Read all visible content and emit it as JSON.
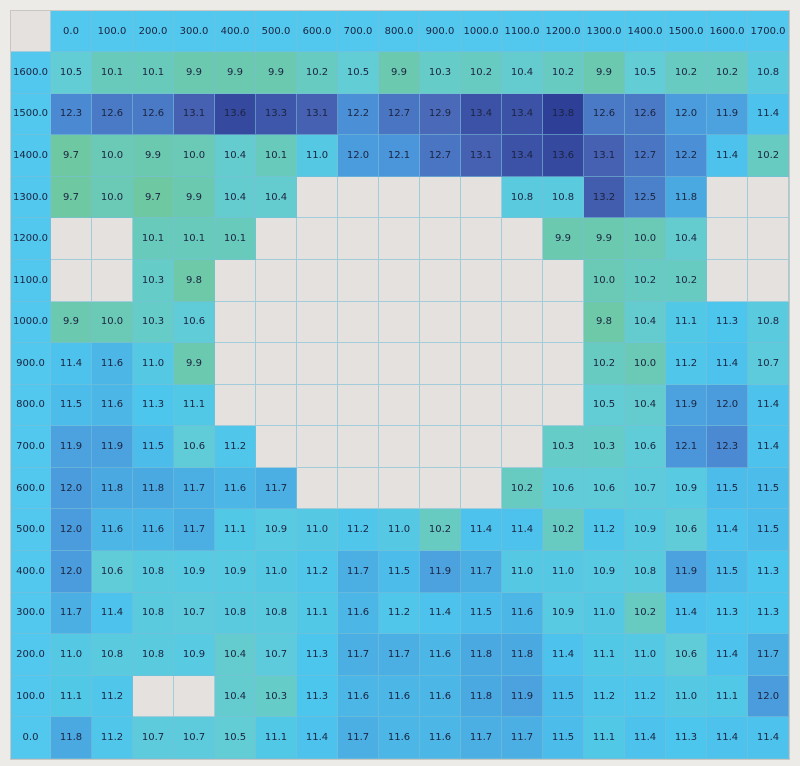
{
  "table": {
    "palette": [
      "#6ec8a2",
      "#62cdd6",
      "#4cc6ee",
      "#4b92d8",
      "#4a66b6",
      "#2e3f98"
    ],
    "empty_color": "#e4e1de",
    "header_color": "#52c8ee",
    "columns": [
      "0.0",
      "100.0",
      "200.0",
      "300.0",
      "400.0",
      "500.0",
      "600.0",
      "700.0",
      "800.0",
      "900.0",
      "1000.0",
      "1100.0",
      "1200.0",
      "1300.0",
      "1400.0",
      "1500.0",
      "1600.0",
      "1700.0"
    ],
    "rows": [
      {
        "label": "1600.0",
        "cells": [
          "10.5",
          "10.1",
          "10.1",
          "9.9",
          "9.9",
          "9.9",
          "10.2",
          "10.5",
          "9.9",
          "10.3",
          "10.2",
          "10.4",
          "10.2",
          "9.9",
          "10.5",
          "10.2",
          "10.2",
          "10.8"
        ]
      },
      {
        "label": "1500.0",
        "cells": [
          "12.3",
          "12.6",
          "12.6",
          "13.1",
          "13.6",
          "13.3",
          "13.1",
          "12.2",
          "12.7",
          "12.9",
          "13.4",
          "13.4",
          "13.8",
          "12.6",
          "12.6",
          "12.0",
          "11.9",
          "11.4"
        ]
      },
      {
        "label": "1400.0",
        "cells": [
          "9.7",
          "10.0",
          "9.9",
          "10.0",
          "10.4",
          "10.1",
          "11.0",
          "12.0",
          "12.1",
          "12.7",
          "13.1",
          "13.4",
          "13.6",
          "13.1",
          "12.7",
          "12.2",
          "11.4",
          "10.2"
        ]
      },
      {
        "label": "1300.0",
        "cells": [
          "9.7",
          "10.0",
          "9.7",
          "9.9",
          "10.4",
          "10.4",
          null,
          null,
          null,
          null,
          null,
          "10.8",
          "10.8",
          "13.2",
          "12.5",
          "11.8",
          null,
          null
        ]
      },
      {
        "label": "1200.0",
        "cells": [
          null,
          null,
          "10.1",
          "10.1",
          "10.1",
          null,
          null,
          null,
          null,
          null,
          null,
          null,
          "9.9",
          "9.9",
          "10.0",
          "10.4",
          null,
          null
        ]
      },
      {
        "label": "1100.0",
        "cells": [
          null,
          null,
          "10.3",
          "9.8",
          null,
          null,
          null,
          null,
          null,
          null,
          null,
          null,
          null,
          "10.0",
          "10.2",
          "10.2",
          null,
          null
        ]
      },
      {
        "label": "1000.0",
        "cells": [
          "9.9",
          "10.0",
          "10.3",
          "10.6",
          null,
          null,
          null,
          null,
          null,
          null,
          null,
          null,
          null,
          "9.8",
          "10.4",
          "11.1",
          "11.3",
          "10.8"
        ]
      },
      {
        "label": "900.0",
        "cells": [
          "11.4",
          "11.6",
          "11.0",
          "9.9",
          null,
          null,
          null,
          null,
          null,
          null,
          null,
          null,
          null,
          "10.2",
          "10.0",
          "11.2",
          "11.4",
          "10.7"
        ]
      },
      {
        "label": "800.0",
        "cells": [
          "11.5",
          "11.6",
          "11.3",
          "11.1",
          null,
          null,
          null,
          null,
          null,
          null,
          null,
          null,
          null,
          "10.5",
          "10.4",
          "11.9",
          "12.0",
          "11.4"
        ]
      },
      {
        "label": "700.0",
        "cells": [
          "11.9",
          "11.9",
          "11.5",
          "10.6",
          "11.2",
          null,
          null,
          null,
          null,
          null,
          null,
          null,
          "10.3",
          "10.3",
          "10.6",
          "12.1",
          "12.3",
          "11.4"
        ]
      },
      {
        "label": "600.0",
        "cells": [
          "12.0",
          "11.8",
          "11.8",
          "11.7",
          "11.6",
          "11.7",
          null,
          null,
          null,
          null,
          null,
          "10.2",
          "10.6",
          "10.6",
          "10.7",
          "10.9",
          "11.5",
          "11.5"
        ]
      },
      {
        "label": "500.0",
        "cells": [
          "12.0",
          "11.6",
          "11.6",
          "11.7",
          "11.1",
          "10.9",
          "11.0",
          "11.2",
          "11.0",
          "10.2",
          "11.4",
          "11.4",
          "10.2",
          "11.2",
          "10.9",
          "10.6",
          "11.4",
          "11.5"
        ]
      },
      {
        "label": "400.0",
        "cells": [
          "12.0",
          "10.6",
          "10.8",
          "10.9",
          "10.9",
          "11.0",
          "11.2",
          "11.7",
          "11.5",
          "11.9",
          "11.7",
          "11.0",
          "11.0",
          "10.9",
          "10.8",
          "11.9",
          "11.5",
          "11.3"
        ]
      },
      {
        "label": "300.0",
        "cells": [
          "11.7",
          "11.4",
          "10.8",
          "10.7",
          "10.8",
          "10.8",
          "11.1",
          "11.6",
          "11.2",
          "11.4",
          "11.5",
          "11.6",
          "10.9",
          "11.0",
          "10.2",
          "11.4",
          "11.3",
          "11.3"
        ]
      },
      {
        "label": "200.0",
        "cells": [
          "11.0",
          "10.8",
          "10.8",
          "10.9",
          "10.4",
          "10.7",
          "11.3",
          "11.7",
          "11.7",
          "11.6",
          "11.8",
          "11.8",
          "11.4",
          "11.1",
          "11.0",
          "10.6",
          "11.4",
          "11.7"
        ]
      },
      {
        "label": "100.0",
        "cells": [
          "11.1",
          "11.2",
          null,
          null,
          "10.4",
          "10.3",
          "11.3",
          "11.6",
          "11.6",
          "11.6",
          "11.8",
          "11.9",
          "11.5",
          "11.2",
          "11.2",
          "11.0",
          "11.1",
          "12.0"
        ]
      },
      {
        "label": "0.0",
        "cells": [
          "11.8",
          "11.2",
          "10.7",
          "10.7",
          "10.5",
          "11.1",
          "11.4",
          "11.7",
          "11.6",
          "11.6",
          "11.7",
          "11.7",
          "11.5",
          "11.1",
          "11.4",
          "11.3",
          "11.4",
          "11.4"
        ]
      }
    ]
  }
}
